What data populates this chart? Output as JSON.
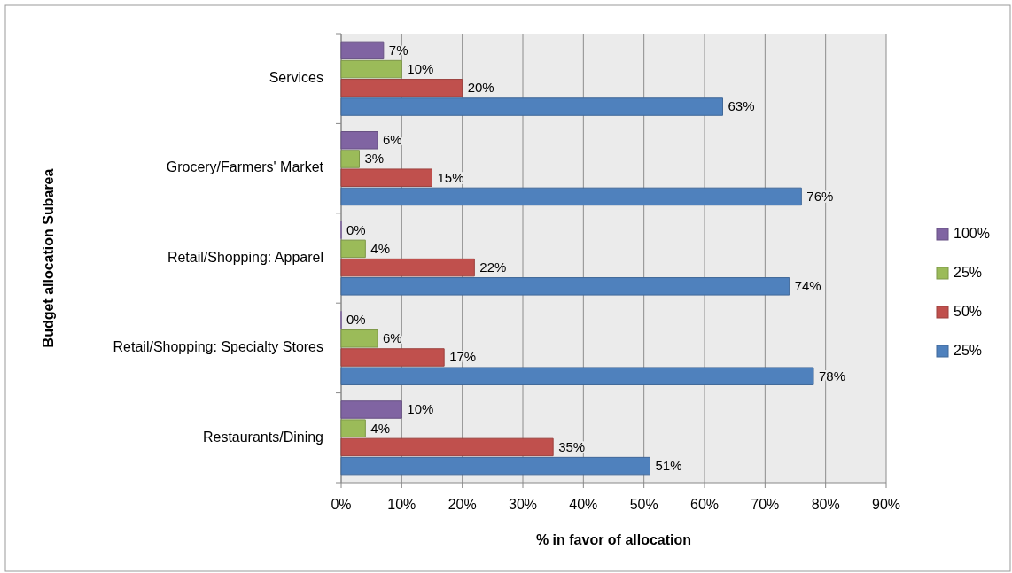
{
  "chart_data": {
    "type": "bar",
    "orientation": "horizontal",
    "xlabel": "% in favor of allocation",
    "ylabel": "Budget allocation Subarea",
    "categories": [
      "Services",
      "Grocery/Farmers' Market",
      "Retail/Shopping: Apparel",
      "Retail/Shopping: Specialty Stores",
      "Restaurants/Dining"
    ],
    "series": [
      {
        "name": "100%",
        "color": "#8064a2",
        "values": [
          7,
          6,
          0,
          0,
          10
        ],
        "value_labels": [
          "7%",
          "6%",
          "0%",
          "0%",
          "10%"
        ]
      },
      {
        "name": "25%",
        "color": "#9bbb59",
        "values": [
          10,
          3,
          4,
          6,
          4
        ],
        "value_labels": [
          "10%",
          "3%",
          "4%",
          "6%",
          "4%"
        ]
      },
      {
        "name": "50%",
        "color": "#c0504d",
        "values": [
          20,
          15,
          22,
          17,
          35
        ],
        "value_labels": [
          "20%",
          "15%",
          "22%",
          "17%",
          "35%"
        ]
      },
      {
        "name": "25%",
        "color": "#4f81bd",
        "values": [
          63,
          76,
          74,
          78,
          51
        ],
        "value_labels": [
          "63%",
          "76%",
          "74%",
          "78%",
          "51%"
        ]
      }
    ],
    "xlim": [
      0,
      90
    ],
    "xticks": [
      {
        "value": 0,
        "label": "0%"
      },
      {
        "value": 10,
        "label": "10%"
      },
      {
        "value": 20,
        "label": "20%"
      },
      {
        "value": 30,
        "label": "30%"
      },
      {
        "value": 40,
        "label": "40%"
      },
      {
        "value": 50,
        "label": "50%"
      },
      {
        "value": 60,
        "label": "60%"
      },
      {
        "value": 70,
        "label": "70%"
      },
      {
        "value": 80,
        "label": "80%"
      },
      {
        "value": 90,
        "label": "90%"
      }
    ],
    "grid": "x",
    "legend": "right"
  }
}
